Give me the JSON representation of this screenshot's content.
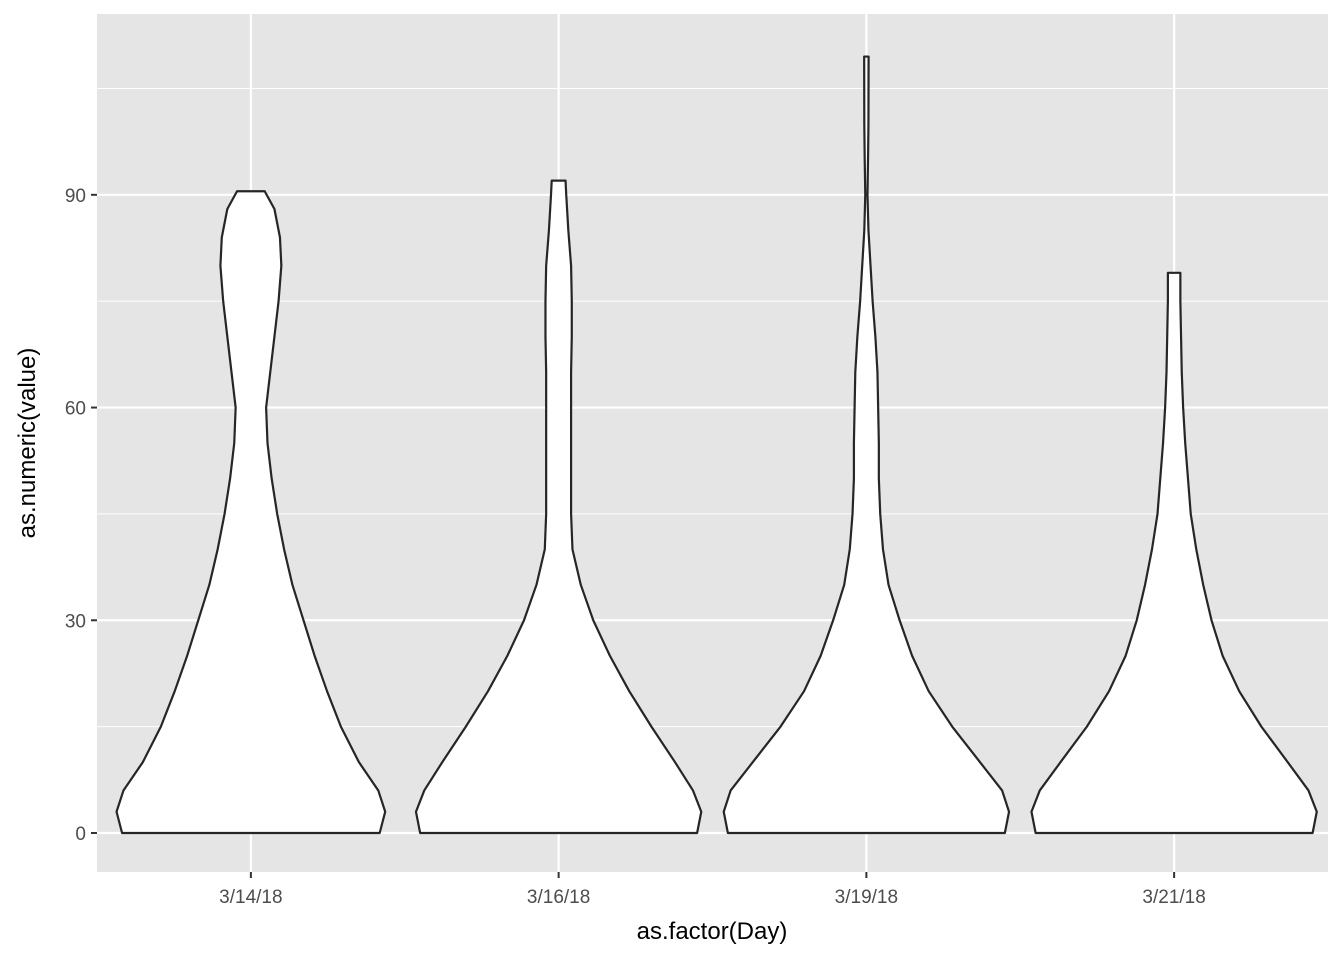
{
  "chart_data": {
    "type": "violin",
    "title": "",
    "xlabel": "as.factor(Day)",
    "ylabel": "as.numeric(value)",
    "categories": [
      "3/14/18",
      "3/16/18",
      "3/19/18",
      "3/21/18"
    ],
    "ylim": [
      -5.5,
      115.5
    ],
    "yticks": [
      0,
      30,
      60,
      90
    ],
    "yticks_minor": [
      15,
      45,
      75,
      105
    ],
    "grid": true,
    "colors": {
      "panel_background": "#e5e5e5",
      "grid_line": "#ffffff",
      "violin_fill": "#ffffff",
      "violin_outline": "#262626"
    },
    "violins": [
      {
        "category": "3/14/18",
        "min": 0,
        "max": 90.5,
        "profile": [
          [
            0,
            0.93
          ],
          [
            3,
            0.97
          ],
          [
            6,
            0.92
          ],
          [
            10,
            0.78
          ],
          [
            15,
            0.65
          ],
          [
            20,
            0.55
          ],
          [
            25,
            0.46
          ],
          [
            30,
            0.38
          ],
          [
            35,
            0.3
          ],
          [
            40,
            0.24
          ],
          [
            45,
            0.19
          ],
          [
            50,
            0.15
          ],
          [
            55,
            0.12
          ],
          [
            60,
            0.11
          ],
          [
            65,
            0.14
          ],
          [
            70,
            0.17
          ],
          [
            75,
            0.2
          ],
          [
            80,
            0.22
          ],
          [
            84,
            0.21
          ],
          [
            88,
            0.17
          ],
          [
            90.5,
            0.1
          ]
        ]
      },
      {
        "category": "3/16/18",
        "min": 0,
        "max": 92,
        "profile": [
          [
            0,
            1.0
          ],
          [
            3,
            1.03
          ],
          [
            6,
            0.97
          ],
          [
            10,
            0.84
          ],
          [
            15,
            0.67
          ],
          [
            20,
            0.51
          ],
          [
            25,
            0.37
          ],
          [
            30,
            0.25
          ],
          [
            35,
            0.16
          ],
          [
            40,
            0.1
          ],
          [
            45,
            0.09
          ],
          [
            50,
            0.09
          ],
          [
            55,
            0.09
          ],
          [
            60,
            0.09
          ],
          [
            65,
            0.09
          ],
          [
            70,
            0.095
          ],
          [
            75,
            0.095
          ],
          [
            80,
            0.09
          ],
          [
            85,
            0.07
          ],
          [
            90,
            0.055
          ],
          [
            92,
            0.05
          ]
        ]
      },
      {
        "category": "3/19/18",
        "min": 0,
        "max": 109.5,
        "profile": [
          [
            0,
            1.0
          ],
          [
            3,
            1.03
          ],
          [
            6,
            0.98
          ],
          [
            10,
            0.82
          ],
          [
            15,
            0.62
          ],
          [
            20,
            0.45
          ],
          [
            25,
            0.33
          ],
          [
            30,
            0.24
          ],
          [
            35,
            0.16
          ],
          [
            40,
            0.12
          ],
          [
            45,
            0.1
          ],
          [
            50,
            0.09
          ],
          [
            55,
            0.09
          ],
          [
            60,
            0.085
          ],
          [
            65,
            0.08
          ],
          [
            70,
            0.065
          ],
          [
            75,
            0.045
          ],
          [
            80,
            0.03
          ],
          [
            85,
            0.015
          ],
          [
            90,
            0.008
          ],
          [
            95,
            0.012
          ],
          [
            100,
            0.015
          ],
          [
            109.5,
            0.016
          ]
        ]
      },
      {
        "category": "3/21/18",
        "min": 0,
        "max": 79,
        "profile": [
          [
            0,
            1.0
          ],
          [
            3,
            1.03
          ],
          [
            6,
            0.97
          ],
          [
            10,
            0.82
          ],
          [
            15,
            0.63
          ],
          [
            20,
            0.47
          ],
          [
            25,
            0.35
          ],
          [
            30,
            0.27
          ],
          [
            35,
            0.21
          ],
          [
            40,
            0.16
          ],
          [
            45,
            0.12
          ],
          [
            50,
            0.1
          ],
          [
            55,
            0.08
          ],
          [
            60,
            0.065
          ],
          [
            65,
            0.055
          ],
          [
            70,
            0.05
          ],
          [
            75,
            0.045
          ],
          [
            79,
            0.045
          ]
        ]
      }
    ]
  }
}
